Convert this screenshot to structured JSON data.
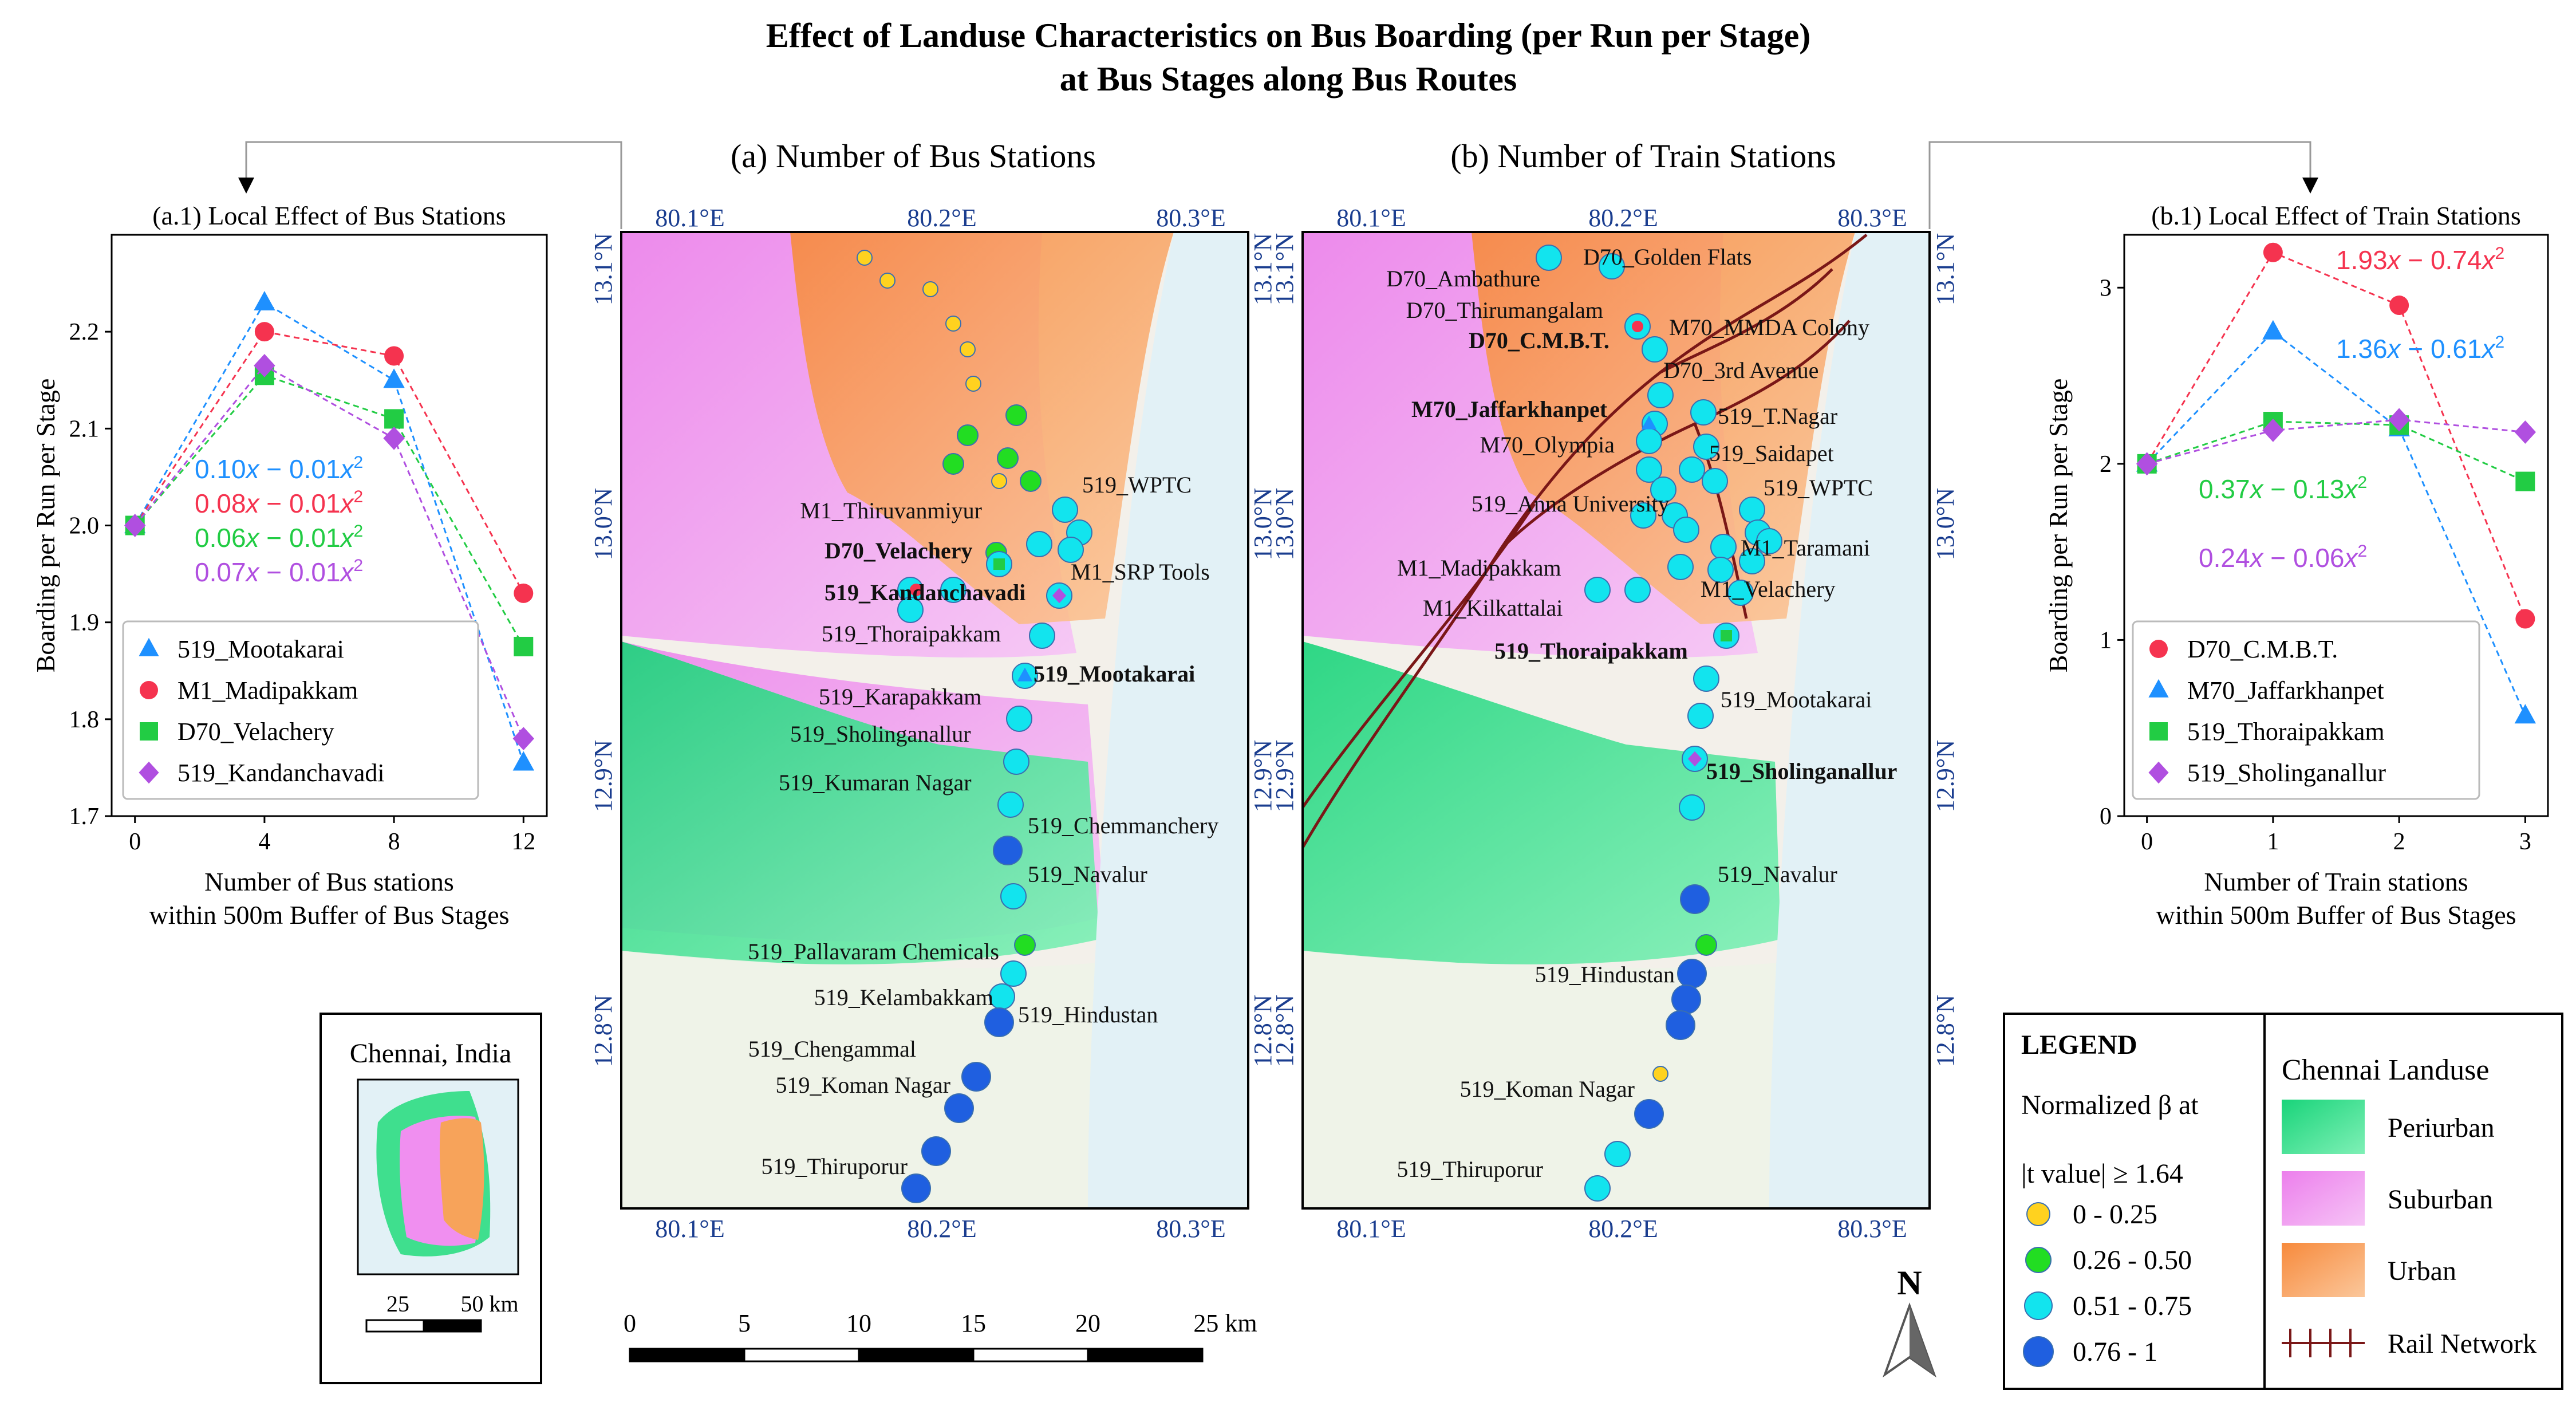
{
  "title": {
    "line1": "Effect of Landuse Characteristics on Bus Boarding (per Run per Stage)",
    "line2": "at Bus Stages along Bus Routes"
  },
  "colors": {
    "c519a": "#1e90ff",
    "c519a_edge": "#0b6fd6",
    "cM1": "#f5334f",
    "cD70": "#22cc44",
    "c519k": "#b04fe0",
    "cat1": "#ffd21f",
    "cat2": "#22dd22",
    "cat3": "#12e4ee",
    "cat4": "#1f5fe0",
    "periurban": "#3fdf8e",
    "suburban": "#f08ff0",
    "urban": "#f7a35a",
    "rail": "#7a1717",
    "water": "#e2f1f6",
    "land": "#f4efe6"
  },
  "map_a_title": "(a) Number of Bus Stations",
  "map_b_title": "(b) Number of Train Stations",
  "lon_ticks": [
    "80.1°E",
    "80.2°E",
    "80.3°E"
  ],
  "lat_ticks": [
    "13.1°N",
    "13.0°N",
    "12.9°N",
    "12.8°N"
  ],
  "chart_data": [
    {
      "type": "line",
      "title": "(a.1) Local Effect of Bus Stations",
      "xlabel": "Number of Bus stations\nwithin 500m Buffer of Bus Stages",
      "ylabel": "Boarding per Run per Stage",
      "x": [
        0,
        4,
        8,
        12
      ],
      "xticks": [
        "0",
        "4",
        "8",
        "12"
      ],
      "ylim": [
        1.7,
        2.3
      ],
      "yticks": [
        "1.7",
        "1.8",
        "1.9",
        "2.0",
        "2.1",
        "2.2"
      ],
      "series": [
        {
          "name": "519_Mootakarai",
          "marker": "triangle",
          "color": "#1e90ff",
          "values": [
            2.0,
            2.23,
            2.15,
            1.755
          ]
        },
        {
          "name": "M1_Madipakkam",
          "marker": "circle",
          "color": "#f5334f",
          "values": [
            2.0,
            2.2,
            2.175,
            1.93
          ]
        },
        {
          "name": "D70_Velachery",
          "marker": "square",
          "color": "#22cc44",
          "values": [
            2.0,
            2.155,
            2.11,
            1.875
          ]
        },
        {
          "name": "519_Kandanchavadi",
          "marker": "diamond",
          "color": "#b04fe0",
          "values": [
            2.0,
            2.165,
            2.09,
            1.78
          ]
        }
      ],
      "equations": [
        {
          "a": "0.10",
          "b": "0.01",
          "color": "#1e90ff"
        },
        {
          "a": "0.08",
          "b": "0.01",
          "color": "#f5334f"
        },
        {
          "a": "0.06",
          "b": "0.01",
          "color": "#22cc44"
        },
        {
          "a": "0.07",
          "b": "0.01",
          "color": "#b04fe0"
        }
      ],
      "legend_placement": "lower-left"
    },
    {
      "type": "line",
      "title": "(b.1) Local Effect of Train Stations",
      "xlabel": "Number of Train stations\nwithin 500m Buffer of Bus Stages",
      "ylabel": "Boarding per Run per Stage",
      "x": [
        0,
        1,
        2,
        3
      ],
      "xticks": [
        "0",
        "1",
        "2",
        "3"
      ],
      "ylim": [
        0,
        3.3
      ],
      "yticks": [
        "0",
        "1",
        "2",
        "3"
      ],
      "series": [
        {
          "name": "D70_C.M.B.T.",
          "marker": "circle",
          "color": "#f5334f",
          "values": [
            2.0,
            3.2,
            2.9,
            1.12
          ]
        },
        {
          "name": "M70_Jaffarkhanpet",
          "marker": "triangle",
          "color": "#1e90ff",
          "values": [
            2.0,
            2.75,
            2.2,
            0.57
          ]
        },
        {
          "name": "519_Thoraipakkam",
          "marker": "square",
          "color": "#22cc44",
          "values": [
            2.0,
            2.24,
            2.22,
            1.9
          ]
        },
        {
          "name": "519_Sholinganallur",
          "marker": "diamond",
          "color": "#b04fe0",
          "values": [
            2.0,
            2.19,
            2.25,
            2.18
          ]
        }
      ],
      "equations": [
        {
          "a": "1.93",
          "b": "0.74",
          "color": "#f5334f"
        },
        {
          "a": "1.36",
          "b": "0.61",
          "color": "#1e90ff"
        },
        {
          "a": "0.37",
          "b": "0.13",
          "color": "#22cc44"
        },
        {
          "a": "0.24",
          "b": "0.06",
          "color": "#b04fe0"
        }
      ],
      "legend_placement": "lower-left"
    }
  ],
  "map_a": {
    "labels": [
      {
        "text": "519_WPTC",
        "bold": false
      },
      {
        "text": "M1_Thiruvanmiyur",
        "bold": false
      },
      {
        "text": "M1_SRP Tools",
        "bold": false
      },
      {
        "text": "D70_Velachery",
        "bold": true
      },
      {
        "text": "519_Kandanchavadi",
        "bold": true
      },
      {
        "text": "519_Thoraipakkam",
        "bold": false
      },
      {
        "text": "519_Mootakarai",
        "bold": true
      },
      {
        "text": "519_Karapakkam",
        "bold": false
      },
      {
        "text": "519_Sholinganallur",
        "bold": false
      },
      {
        "text": "519_Kumaran Nagar",
        "bold": false
      },
      {
        "text": "519_Chemmanchery",
        "bold": false
      },
      {
        "text": "519_Navalur",
        "bold": false
      },
      {
        "text": "519_Pallavaram Chemicals",
        "bold": false
      },
      {
        "text": "519_Kelambakkam",
        "bold": false
      },
      {
        "text": "519_Hindustan",
        "bold": false
      },
      {
        "text": "519_Chengammal",
        "bold": false
      },
      {
        "text": "519_Koman Nagar",
        "bold": false
      },
      {
        "text": "519_Thiruporur",
        "bold": false
      }
    ]
  },
  "map_b": {
    "labels": [
      {
        "text": "D70_Golden Flats",
        "bold": false
      },
      {
        "text": "D70_Ambathure",
        "bold": false
      },
      {
        "text": "D70_Thirumangalam",
        "bold": false
      },
      {
        "text": "D70_C.M.B.T.",
        "bold": true
      },
      {
        "text": "M70_MMDA Colony",
        "bold": false
      },
      {
        "text": "D70_3rd Avenue",
        "bold": false
      },
      {
        "text": "M70_Jaffarkhanpet",
        "bold": true
      },
      {
        "text": "519_T.Nagar",
        "bold": false
      },
      {
        "text": "M70_Olympia",
        "bold": false
      },
      {
        "text": "519_Saidapet",
        "bold": false
      },
      {
        "text": "519_WPTC",
        "bold": false
      },
      {
        "text": "519_Anna University",
        "bold": false
      },
      {
        "text": "M1_Taramani",
        "bold": false
      },
      {
        "text": "M1_Madipakkam",
        "bold": false
      },
      {
        "text": "M1_Velachery",
        "bold": false
      },
      {
        "text": "M1_Kilkattalai",
        "bold": false
      },
      {
        "text": "519_Thoraipakkam",
        "bold": true
      },
      {
        "text": "519_Mootakarai",
        "bold": false
      },
      {
        "text": "519_Sholinganallur",
        "bold": true
      },
      {
        "text": "519_Navalur",
        "bold": false
      },
      {
        "text": "519_Hindustan",
        "bold": false
      },
      {
        "text": "519_Koman Nagar",
        "bold": false
      },
      {
        "text": "519_Thiruporur",
        "bold": false
      }
    ]
  },
  "inset": {
    "title": "Chennai, India",
    "scale_labels": [
      "25",
      "50 km"
    ]
  },
  "scalebar": {
    "ticks": [
      "0",
      "5",
      "10",
      "15",
      "20"
    ],
    "end_label": "25 km"
  },
  "north": "N",
  "legend": {
    "heading": "LEGEND",
    "beta_line1": "Normalized β at",
    "beta_line2": "|t value| ≥ 1.64",
    "classes": [
      "0 - 0.25",
      "0.26 - 0.50",
      "0.51 - 0.75",
      "0.76 - 1"
    ],
    "landuse_title": "Chennai Landuse",
    "landuse": [
      "Periurban",
      "Suburban",
      "Urban",
      "Rail Network"
    ]
  }
}
